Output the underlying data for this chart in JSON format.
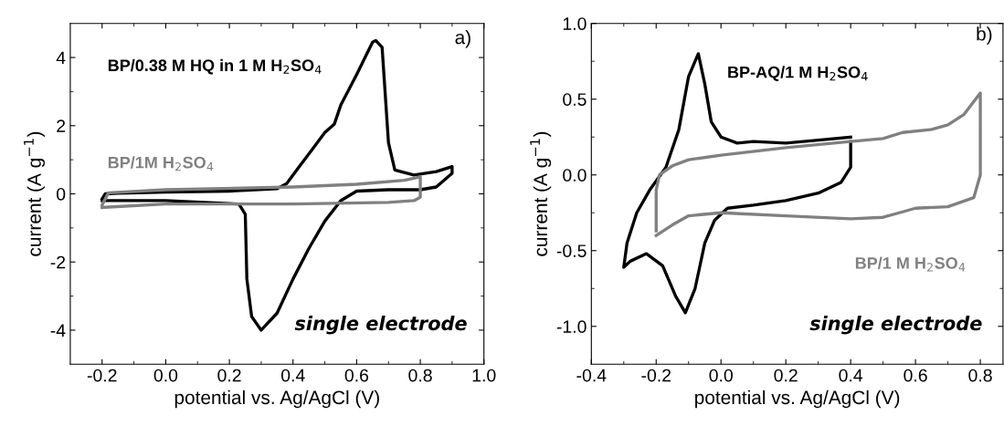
{
  "chart_data": [
    {
      "type": "line",
      "xlabel": "potential vs. Ag/AgCl (V)",
      "ylabel": "current (A g$^{−1}$)",
      "annotations": [
        "a)",
        "single electrode"
      ],
      "xlim": [
        -0.3,
        1.0
      ],
      "ylim": [
        -5,
        5
      ],
      "xticks": [
        {
          "value": -0.2,
          "label": "-0.2"
        },
        {
          "value": -0.1,
          "label": null
        },
        {
          "value": 0.0,
          "label": "0.0"
        },
        {
          "value": 0.1,
          "label": null
        },
        {
          "value": 0.2,
          "label": "0.2"
        },
        {
          "value": 0.3,
          "label": null
        },
        {
          "value": 0.4,
          "label": "0.4"
        },
        {
          "value": 0.5,
          "label": null
        },
        {
          "value": 0.6,
          "label": "0.6"
        },
        {
          "value": 0.7,
          "label": null
        },
        {
          "value": 0.8,
          "label": "0.8"
        },
        {
          "value": 0.9,
          "label": null
        },
        {
          "value": 1.0,
          "label": "1.0"
        }
      ],
      "yticks": [
        -4,
        {
          "value": -3,
          "label": null
        },
        -2,
        {
          "value": -1,
          "label": null
        },
        0,
        {
          "value": 1,
          "label": null
        },
        2,
        {
          "value": 3,
          "label": null
        },
        4
      ],
      "grid": false,
      "legend": false,
      "marker": "none",
      "line_style": "solid",
      "series": [
        {
          "name": "BP/0.38 M HQ in 1 M H$_{2}$SO$_{4}$",
          "color": "#000000",
          "x": [
            -0.2,
            -0.19,
            -0.15,
            0.0,
            0.2,
            0.35,
            0.38,
            0.42,
            0.46,
            0.5,
            0.53,
            0.55,
            0.6,
            0.65,
            0.66,
            0.68,
            0.7,
            0.72,
            0.78,
            0.85,
            0.9,
            0.9,
            0.85,
            0.8,
            0.7,
            0.6,
            0.55,
            0.5,
            0.45,
            0.4,
            0.35,
            0.3,
            0.27,
            0.255,
            0.25,
            0.23,
            0.0,
            -0.2
          ],
          "values": [
            -0.15,
            0.0,
            0.02,
            0.05,
            0.08,
            0.15,
            0.3,
            0.8,
            1.3,
            1.8,
            2.05,
            2.6,
            3.5,
            4.45,
            4.5,
            4.3,
            1.5,
            0.7,
            0.55,
            0.65,
            0.8,
            0.6,
            0.2,
            0.12,
            0.12,
            0.08,
            -0.2,
            -0.8,
            -1.6,
            -2.5,
            -3.5,
            -4.0,
            -3.6,
            -2.5,
            -0.6,
            -0.3,
            -0.2,
            -0.2
          ]
        },
        {
          "name": "BP/1M H$_{2}$SO$_{4}$",
          "color": "#808080",
          "x": [
            -0.2,
            -0.18,
            0.0,
            0.4,
            0.6,
            0.75,
            0.8,
            0.8,
            0.78,
            0.7,
            0.4,
            0.0,
            -0.2
          ],
          "values": [
            -0.33,
            0.03,
            0.12,
            0.2,
            0.28,
            0.4,
            0.5,
            -0.1,
            -0.2,
            -0.25,
            -0.3,
            -0.3,
            -0.4
          ]
        }
      ]
    },
    {
      "type": "line",
      "xlabel": "potential vs. Ag/AgCl (V)",
      "ylabel": "current (A g$^{−1}$)",
      "annotations": [
        "b)",
        "single electrode"
      ],
      "xlim": [
        -0.4,
        0.87
      ],
      "ylim": [
        -1.25,
        1.0
      ],
      "xticks": [
        {
          "value": -0.4,
          "label": "-0.4"
        },
        {
          "value": -0.3,
          "label": null
        },
        {
          "value": -0.2,
          "label": "-0.2"
        },
        {
          "value": -0.1,
          "label": null
        },
        {
          "value": 0.0,
          "label": "0.0"
        },
        {
          "value": 0.1,
          "label": null
        },
        {
          "value": 0.2,
          "label": "0.2"
        },
        {
          "value": 0.3,
          "label": null
        },
        {
          "value": 0.4,
          "label": "0.4"
        },
        {
          "value": 0.5,
          "label": null
        },
        {
          "value": 0.6,
          "label": "0.6"
        },
        {
          "value": 0.7,
          "label": null
        },
        {
          "value": 0.8,
          "label": "0.8"
        }
      ],
      "yticks": [
        {
          "value": -1.0,
          "label": "-1.0"
        },
        {
          "value": -0.75,
          "label": null
        },
        {
          "value": -0.5,
          "label": "-0.5"
        },
        {
          "value": -0.25,
          "label": null
        },
        {
          "value": 0.0,
          "label": "0.0"
        },
        {
          "value": 0.25,
          "label": null
        },
        {
          "value": 0.5,
          "label": "0.5"
        },
        {
          "value": 0.75,
          "label": null
        },
        {
          "value": 1.0,
          "label": "1.0"
        }
      ],
      "grid": false,
      "legend": false,
      "marker": "none",
      "line_style": "solid",
      "series": [
        {
          "name": "BP-AQ/1 M H$_{2}$SO$_{4}$",
          "color": "#000000",
          "x": [
            0.4,
            0.3,
            0.2,
            0.1,
            0.05,
            0.0,
            -0.03,
            -0.05,
            -0.07,
            -0.1,
            -0.13,
            -0.17,
            -0.22,
            -0.26,
            -0.29,
            -0.3,
            -0.28,
            -0.23,
            -0.18,
            -0.14,
            -0.11,
            -0.08,
            -0.05,
            -0.02,
            0.02,
            0.1,
            0.2,
            0.3,
            0.37,
            0.4,
            0.4
          ],
          "values": [
            0.25,
            0.23,
            0.21,
            0.22,
            0.21,
            0.25,
            0.35,
            0.6,
            0.8,
            0.65,
            0.3,
            0.05,
            -0.1,
            -0.25,
            -0.45,
            -0.61,
            -0.57,
            -0.52,
            -0.6,
            -0.8,
            -0.91,
            -0.75,
            -0.45,
            -0.3,
            -0.22,
            -0.2,
            -0.17,
            -0.12,
            -0.05,
            0.05,
            0.22
          ]
        },
        {
          "name": "BP/1 M H$_{2}$SO$_{4}$",
          "color": "#808080",
          "x": [
            -0.2,
            -0.2,
            -0.19,
            -0.15,
            -0.1,
            0.0,
            0.2,
            0.4,
            0.5,
            0.56,
            0.65,
            0.7,
            0.75,
            0.8,
            0.8,
            0.78,
            0.7,
            0.6,
            0.55,
            0.5,
            0.4,
            0.2,
            0.0,
            -0.1,
            -0.15,
            -0.2
          ],
          "values": [
            -0.37,
            -0.1,
            0.0,
            0.06,
            0.1,
            0.13,
            0.18,
            0.22,
            0.24,
            0.28,
            0.3,
            0.33,
            0.4,
            0.54,
            0.0,
            -0.15,
            -0.21,
            -0.22,
            -0.25,
            -0.28,
            -0.29,
            -0.27,
            -0.25,
            -0.27,
            -0.33,
            -0.4
          ]
        }
      ]
    }
  ]
}
